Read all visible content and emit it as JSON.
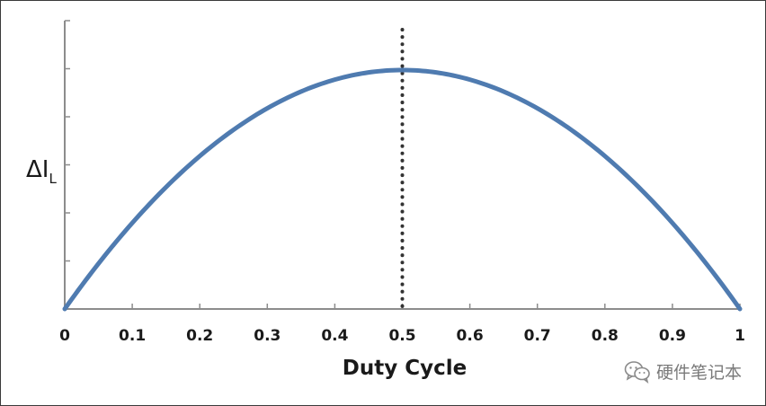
{
  "chart_data": {
    "type": "line",
    "xlabel": "Duty Cycle",
    "ylabel": "ΔI",
    "ylabel_subscript": "L",
    "x_ticks": [
      "0",
      "0.1",
      "0.2",
      "0.3",
      "0.4",
      "0.5",
      "0.6",
      "0.7",
      "0.8",
      "0.9",
      "1"
    ],
    "xlim": [
      0,
      1
    ],
    "ylim": [
      0,
      0.3
    ],
    "y_minor_ticks": 6,
    "y_tick_labels_shown": false,
    "grid": false,
    "legend": "none",
    "function": "D*(1-D)",
    "series": [
      {
        "x": [
          0,
          0.05,
          0.1,
          0.15,
          0.2,
          0.25,
          0.3,
          0.35,
          0.4,
          0.45,
          0.5,
          0.55,
          0.6,
          0.65,
          0.7,
          0.75,
          0.8,
          0.85,
          0.9,
          0.95,
          1
        ],
        "values": [
          0,
          0.0475,
          0.09,
          0.1275,
          0.16,
          0.1875,
          0.21,
          0.2275,
          0.24,
          0.2475,
          0.25,
          0.2475,
          0.24,
          0.2275,
          0.21,
          0.1875,
          0.16,
          0.1275,
          0.09,
          0.0475,
          0
        ],
        "color": "#4f7bb0"
      }
    ],
    "reference_line": {
      "x": 0.5,
      "style": "dotted",
      "color": "#333333"
    },
    "watermark": "硬件笔记本"
  },
  "colors": {
    "curve": "#4f7bb0",
    "axis": "#8c8c8c",
    "reference": "#333333",
    "watermark": "#7a7a7a"
  }
}
